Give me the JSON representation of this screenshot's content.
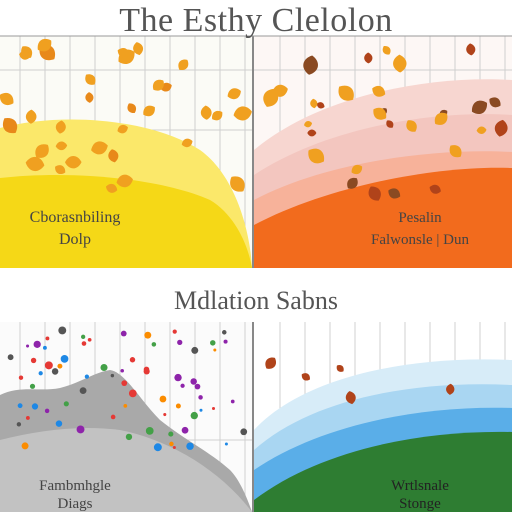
{
  "header": {
    "title": "The Esthy Clelolon"
  },
  "section_title": "Mdlation Sabns",
  "colors": {
    "yellow": "#f5d817",
    "yellow_light": "#fbe86a",
    "orange": "#f26b1d",
    "orange_pale": "#f7b29a",
    "pink": "#f3c6bf",
    "leaf": "#f0a020",
    "leaf_dark": "#b0431a",
    "brown": "#8a4a22",
    "gray": "#a9a9a9",
    "blue": "#5aaee8",
    "blue_light": "#a9d6f2",
    "green": "#2e7d32",
    "grid": "#c8c8c8"
  },
  "panels": [
    {
      "caption_line1": "Cborasnbiling",
      "caption_line2": "Dolp"
    },
    {
      "caption_line1": "Pesalin",
      "caption_line2": "Falwonsle | Dun"
    },
    {
      "caption_line1": "Fambmhgle",
      "caption_line2": "Diags"
    },
    {
      "caption_line1": "Wrtlsnale",
      "caption_line2": "Stonge"
    }
  ],
  "chart_data": [
    {
      "type": "area",
      "panel": "top-left",
      "shape": "yellow dome with scattered autumn leaves",
      "grid": true
    },
    {
      "type": "area",
      "panel": "top-right",
      "shape": "orange / pink bands with scattered brown leaves",
      "grid": true
    },
    {
      "type": "scatter",
      "panel": "bottom-left",
      "shape": "gray mountain silhouette with scattered colored points",
      "grid": true
    },
    {
      "type": "area",
      "panel": "bottom-right",
      "shape": "blue sky bands over green hill",
      "grid": true
    }
  ]
}
